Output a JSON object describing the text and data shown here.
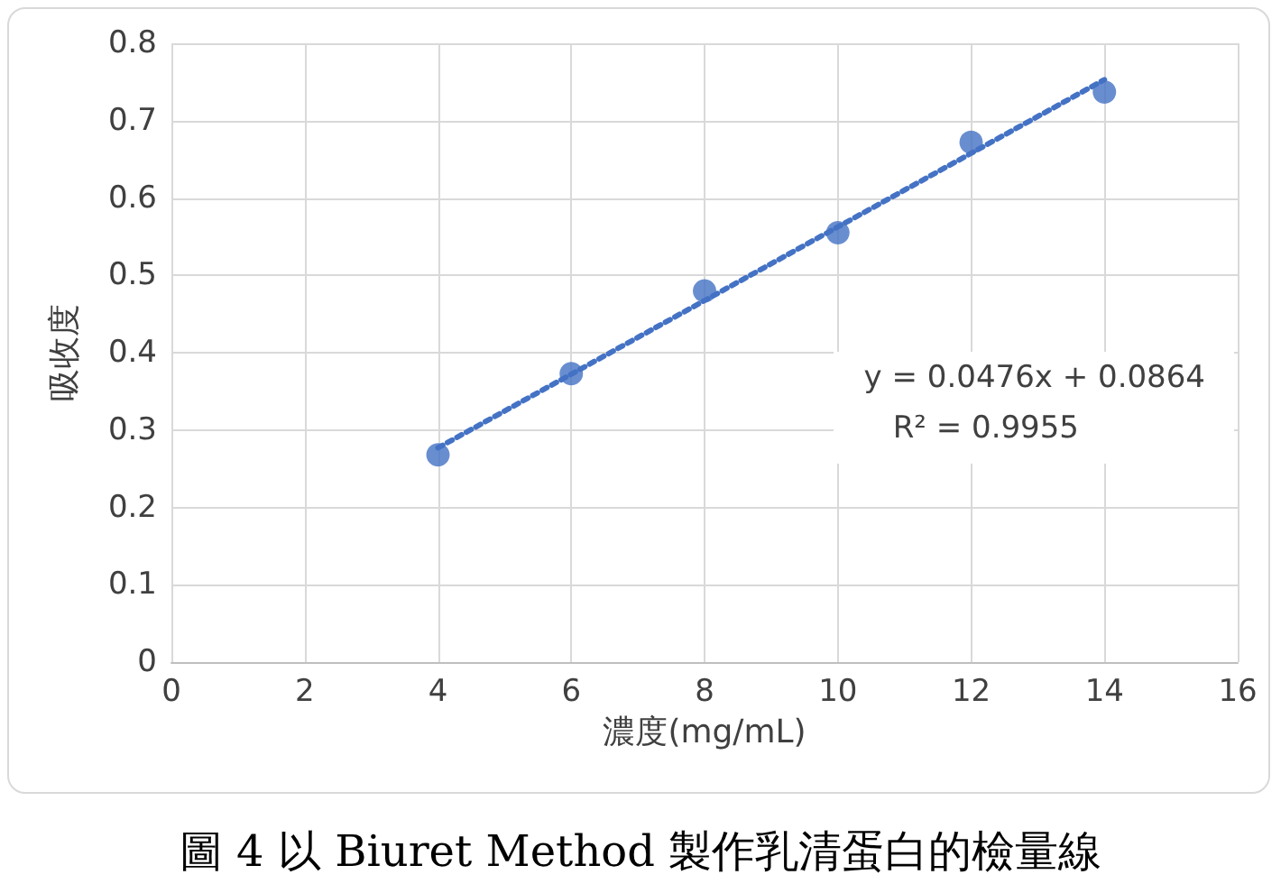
{
  "chart_data": {
    "type": "scatter",
    "title": "圖 4 以 Biuret Method 製作乳清蛋白的檢量線",
    "xlabel": "濃度(mg/mL)",
    "ylabel": "吸收度",
    "annotations": [
      "y = 0.0476x + 0.0864",
      "R² = 0.9955"
    ],
    "series": [
      {
        "color": "#4472c4",
        "marker": "circle",
        "x": [
          4,
          6,
          8,
          10,
          12,
          14
        ],
        "values": [
          0.268,
          0.373,
          0.48,
          0.555,
          0.672,
          0.737
        ]
      },
      {
        "type": "line",
        "color": "#4472c4",
        "marker": "none",
        "line_style": "dotted",
        "x": [
          4,
          14
        ],
        "values": [
          0.277,
          0.753
        ]
      }
    ],
    "xlim": [
      0,
      16
    ],
    "xticks": [
      0,
      2,
      4,
      6,
      8,
      10,
      12,
      14,
      16
    ],
    "ylim": [
      0,
      0.8
    ],
    "yticks": [
      0,
      0.1,
      0.2,
      0.3,
      0.4,
      0.5,
      0.6,
      0.7,
      0.8
    ],
    "grid": true
  }
}
